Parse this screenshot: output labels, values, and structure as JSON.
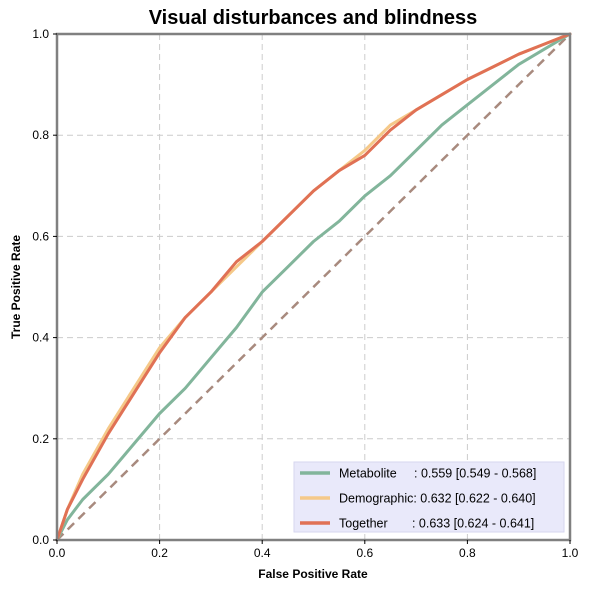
{
  "chart_data": {
    "type": "line",
    "title": "Visual disturbances and blindness",
    "xlabel": "False Positive Rate",
    "ylabel": "True Positive Rate",
    "xlim": [
      0,
      1
    ],
    "ylim": [
      0,
      1
    ],
    "xticks": [
      "0.0",
      "0.2",
      "0.4",
      "0.6",
      "0.8",
      "1.0"
    ],
    "yticks": [
      "0.0",
      "0.2",
      "0.4",
      "0.6",
      "0.8",
      "1.0"
    ],
    "grid": true,
    "legend_position": "lower-right",
    "reference_line": {
      "x": [
        0,
        1
      ],
      "y": [
        0,
        1
      ],
      "color": "#a88a7e",
      "style": "dashed"
    },
    "series": [
      {
        "name": "Metabolite",
        "label": "Metabolite     : 0.559 [0.549 - 0.568]",
        "color": "#82b59b",
        "x": [
          0,
          0.02,
          0.05,
          0.1,
          0.15,
          0.2,
          0.25,
          0.3,
          0.35,
          0.4,
          0.45,
          0.5,
          0.55,
          0.6,
          0.65,
          0.7,
          0.75,
          0.8,
          0.85,
          0.9,
          0.95,
          1.0
        ],
        "y": [
          0,
          0.04,
          0.08,
          0.13,
          0.19,
          0.25,
          0.3,
          0.36,
          0.42,
          0.49,
          0.54,
          0.59,
          0.63,
          0.68,
          0.72,
          0.77,
          0.82,
          0.86,
          0.9,
          0.94,
          0.97,
          1.0
        ]
      },
      {
        "name": "Demographic",
        "label": "Demographic: 0.632 [0.622 - 0.640]",
        "color": "#f5c989",
        "x": [
          0,
          0.02,
          0.05,
          0.1,
          0.15,
          0.2,
          0.25,
          0.3,
          0.35,
          0.4,
          0.45,
          0.5,
          0.55,
          0.6,
          0.65,
          0.7,
          0.75,
          0.8,
          0.85,
          0.9,
          0.95,
          1.0
        ],
        "y": [
          0,
          0.06,
          0.13,
          0.22,
          0.3,
          0.38,
          0.44,
          0.49,
          0.54,
          0.59,
          0.64,
          0.69,
          0.73,
          0.77,
          0.82,
          0.85,
          0.88,
          0.91,
          0.935,
          0.96,
          0.98,
          1.0
        ]
      },
      {
        "name": "Together",
        "label": "Together       : 0.633 [0.624 - 0.641]",
        "color": "#e07155",
        "x": [
          0,
          0.02,
          0.05,
          0.1,
          0.15,
          0.2,
          0.25,
          0.3,
          0.35,
          0.4,
          0.45,
          0.5,
          0.55,
          0.6,
          0.65,
          0.7,
          0.75,
          0.8,
          0.85,
          0.9,
          0.95,
          1.0
        ],
        "y": [
          0,
          0.06,
          0.12,
          0.21,
          0.29,
          0.37,
          0.44,
          0.49,
          0.55,
          0.59,
          0.64,
          0.69,
          0.73,
          0.76,
          0.81,
          0.85,
          0.88,
          0.91,
          0.935,
          0.96,
          0.98,
          1.0
        ]
      }
    ]
  }
}
